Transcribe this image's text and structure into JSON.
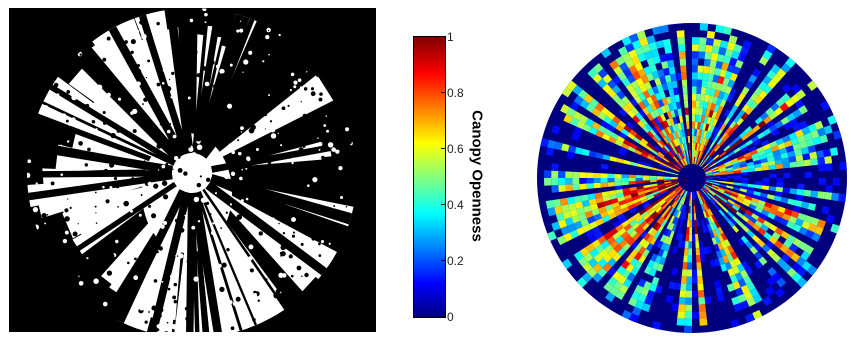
{
  "colorbar": {
    "label": "Canopy Openness",
    "ticks": [
      "1",
      "0.8",
      "0.6",
      "0.4",
      "0.2",
      "0"
    ],
    "colors": [
      "#7f0000",
      "#ff0000",
      "#ffff00",
      "#00ffff",
      "#0000ff",
      "#00007f"
    ]
  },
  "left_panel": {
    "background": "#000000",
    "foreground": "#ffffff"
  },
  "right_panel": {
    "background": "#00007f"
  }
}
